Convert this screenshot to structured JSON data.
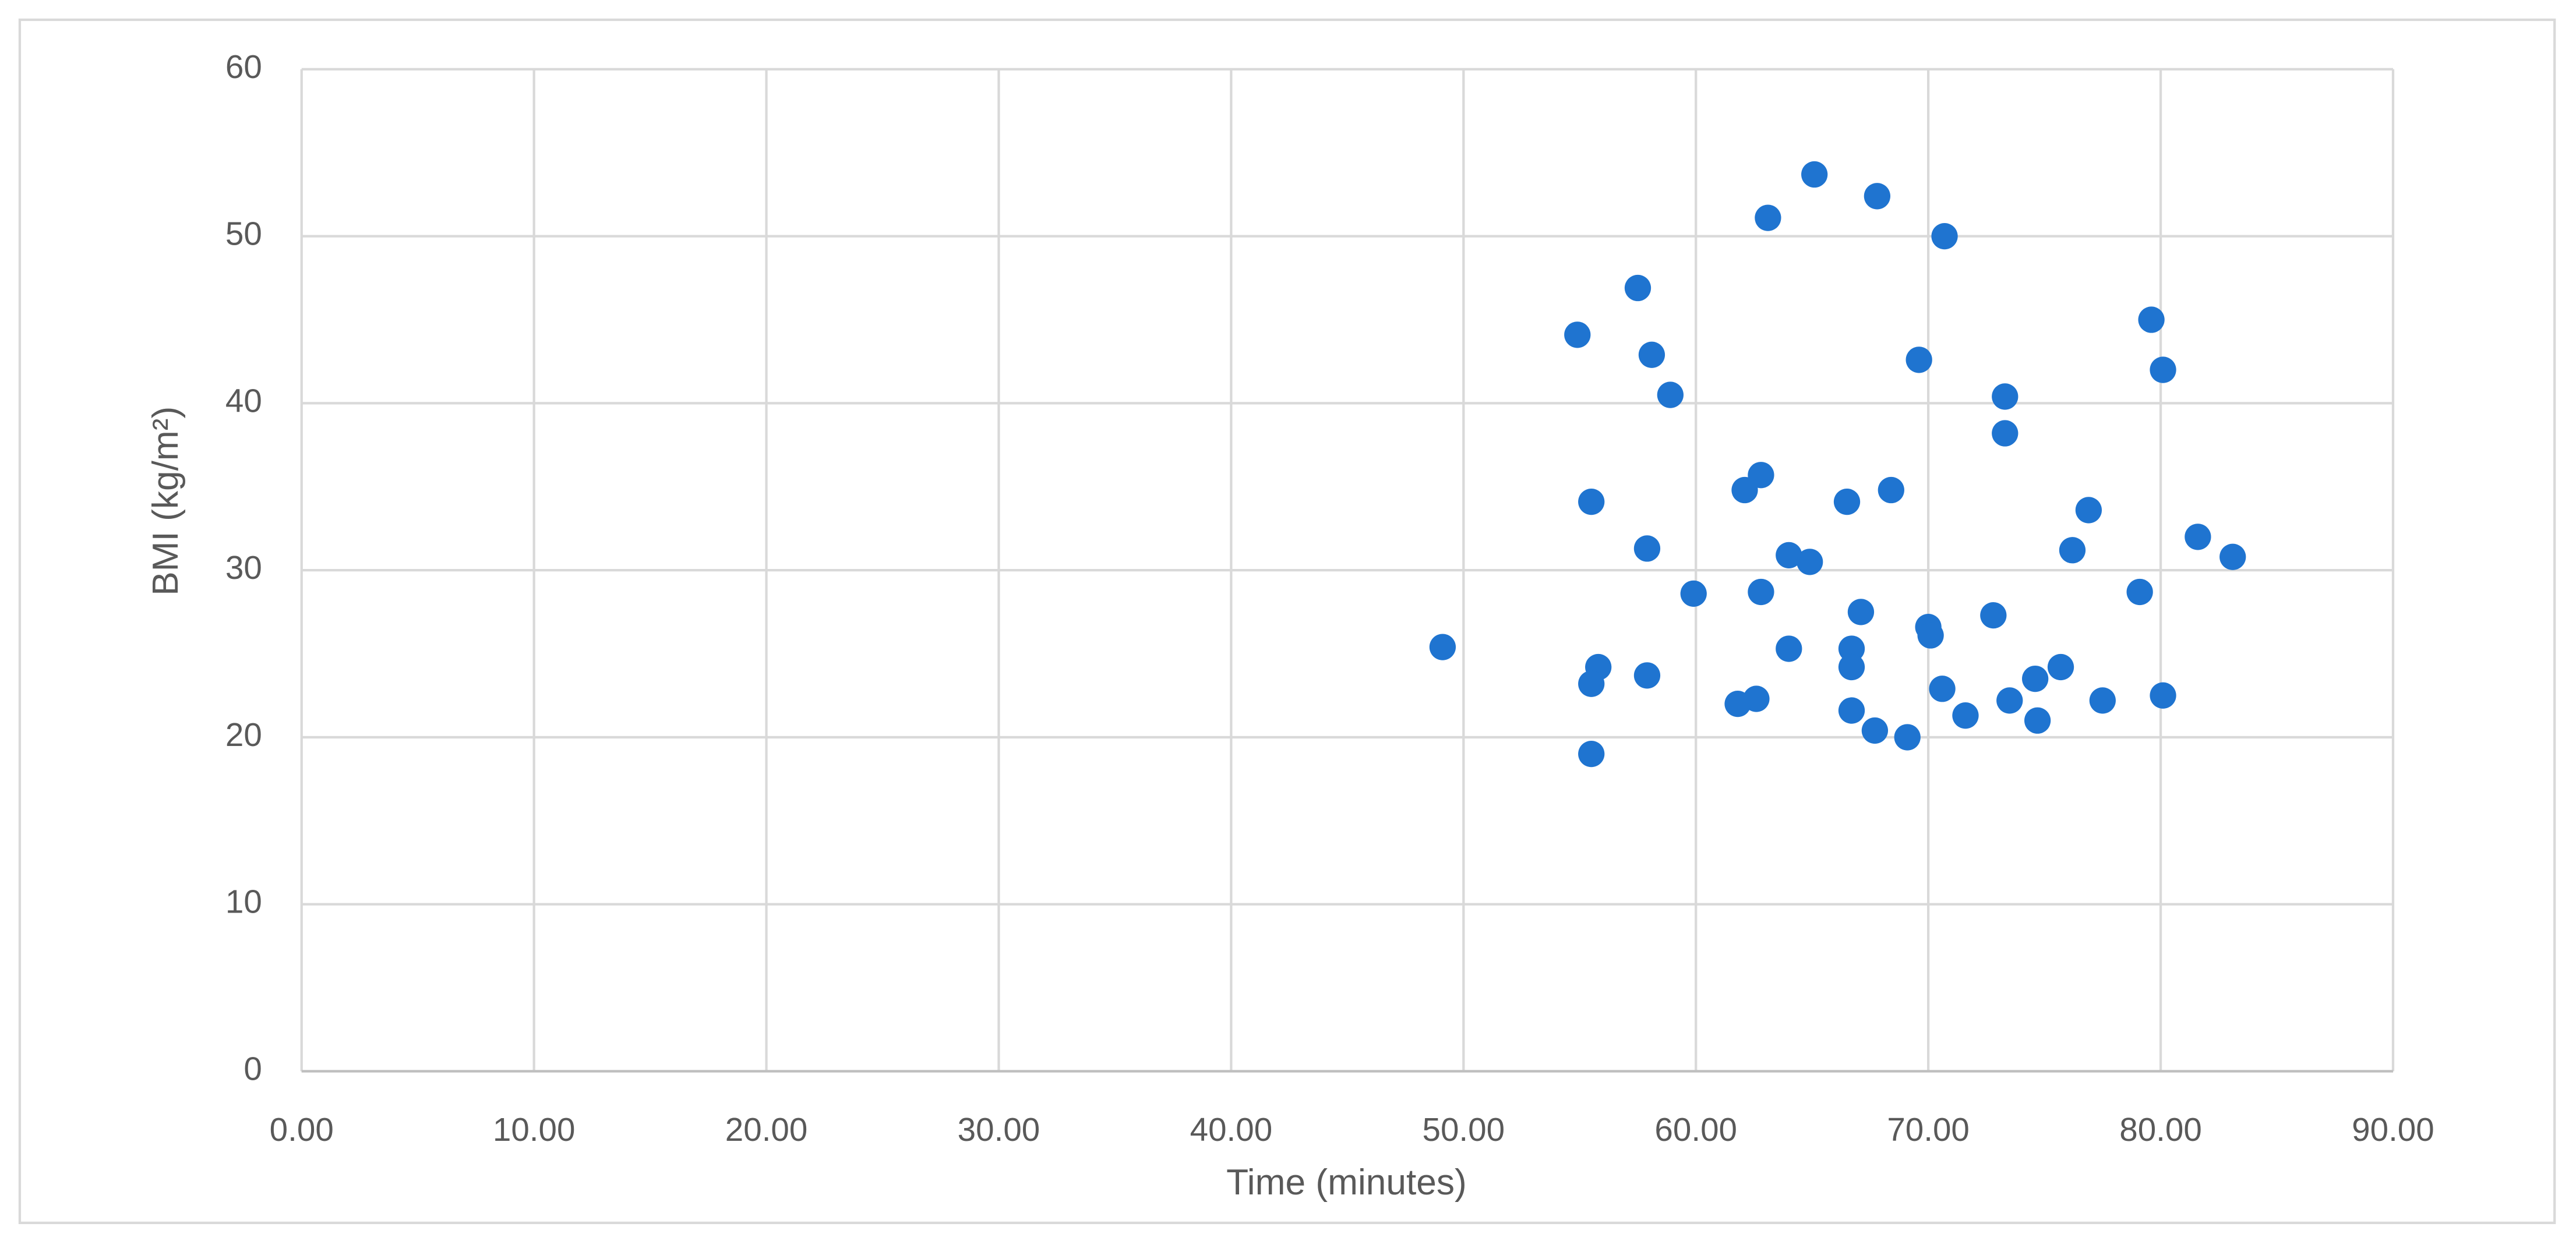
{
  "chart_data": {
    "type": "scatter",
    "x_label": "Time (minutes)",
    "y_label": "BMI (kg/m²)",
    "color": "#1f74d0",
    "grid": true,
    "xlim": [
      0,
      90
    ],
    "ylim": [
      0,
      60
    ],
    "xticks": [
      {
        "value": 0,
        "label": "0.00"
      },
      {
        "value": 10,
        "label": "10.00"
      },
      {
        "value": 20,
        "label": "20.00"
      },
      {
        "value": 30,
        "label": "30.00"
      },
      {
        "value": 40,
        "label": "40.00"
      },
      {
        "value": 50,
        "label": "50.00"
      },
      {
        "value": 60,
        "label": "60.00"
      },
      {
        "value": 70,
        "label": "70.00"
      },
      {
        "value": 80,
        "label": "80.00"
      },
      {
        "value": 90,
        "label": "90.00"
      }
    ],
    "yticks": [
      0,
      10,
      20,
      30,
      40,
      50,
      60
    ],
    "x": [
      49.1,
      54.9,
      57.5,
      58.1,
      58.9,
      55.5,
      57.9,
      59.9,
      55.8,
      55.5,
      57.9,
      55.5,
      63.1,
      65.1,
      67.8,
      70.7,
      69.6,
      73.3,
      73.3,
      62.1,
      62.8,
      66.5,
      68.4,
      64.0,
      64.9,
      62.8,
      67.1,
      64.0,
      66.7,
      66.7,
      70.0,
      70.1,
      72.8,
      62.6,
      61.8,
      66.7,
      67.7,
      69.1,
      70.6,
      71.6,
      73.5,
      74.6,
      74.7,
      75.7,
      77.5,
      76.9,
      76.2,
      79.1,
      79.6,
      80.1,
      81.6,
      83.1,
      80.1
    ],
    "values": [
      25.4,
      44.1,
      46.9,
      42.9,
      40.5,
      34.1,
      31.3,
      28.6,
      24.2,
      23.2,
      23.7,
      19.0,
      51.1,
      53.7,
      52.4,
      50.0,
      42.6,
      40.4,
      38.2,
      34.8,
      35.7,
      34.1,
      34.8,
      30.9,
      30.5,
      28.7,
      27.5,
      25.3,
      25.3,
      24.2,
      26.6,
      26.1,
      27.3,
      22.3,
      22.0,
      21.6,
      20.4,
      20.0,
      22.9,
      21.3,
      22.2,
      23.5,
      21.0,
      24.2,
      22.2,
      33.6,
      31.2,
      28.7,
      45.0,
      42.0,
      32.0,
      30.8,
      22.5
    ]
  }
}
